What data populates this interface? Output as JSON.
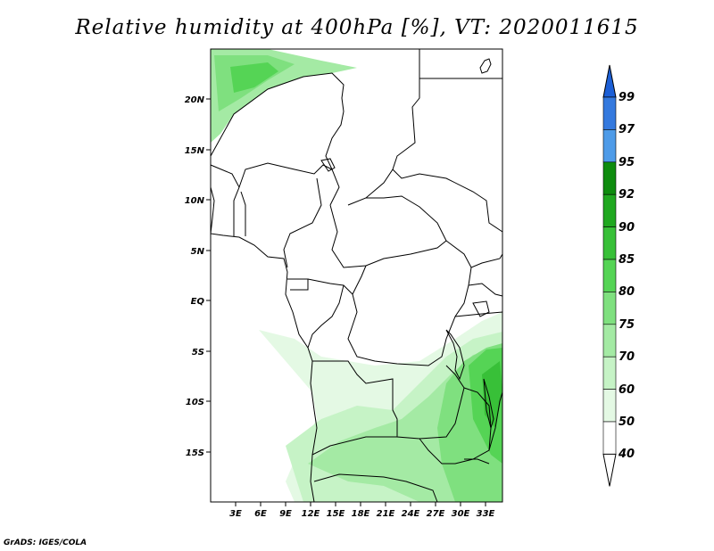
{
  "title": "Relative humidity at 400hPa [%], VT: 2020011615",
  "credit": "GrADS: IGES/COLA",
  "map": {
    "lon_range": [
      0,
      35
    ],
    "lat_range": [
      -20,
      25
    ],
    "lon_ticks": [
      "3E",
      "6E",
      "9E",
      "12E",
      "15E",
      "18E",
      "21E",
      "24E",
      "27E",
      "30E",
      "33E"
    ],
    "lat_ticks": [
      "20N",
      "15N",
      "10N",
      "5N",
      "EQ",
      "5S",
      "10S",
      "15S"
    ]
  },
  "colorbar": {
    "levels": [
      "99",
      "97",
      "95",
      "92",
      "90",
      "85",
      "80",
      "75",
      "70",
      "60",
      "50",
      "40"
    ],
    "colors": [
      "#1c5fd6",
      "#3479de",
      "#4e9be8",
      "#0e8c0e",
      "#20a820",
      "#38c038",
      "#55d455",
      "#7fe07f",
      "#a4eaa4",
      "#c6f3c6",
      "#e4f9e4",
      "#ffffff"
    ]
  }
}
